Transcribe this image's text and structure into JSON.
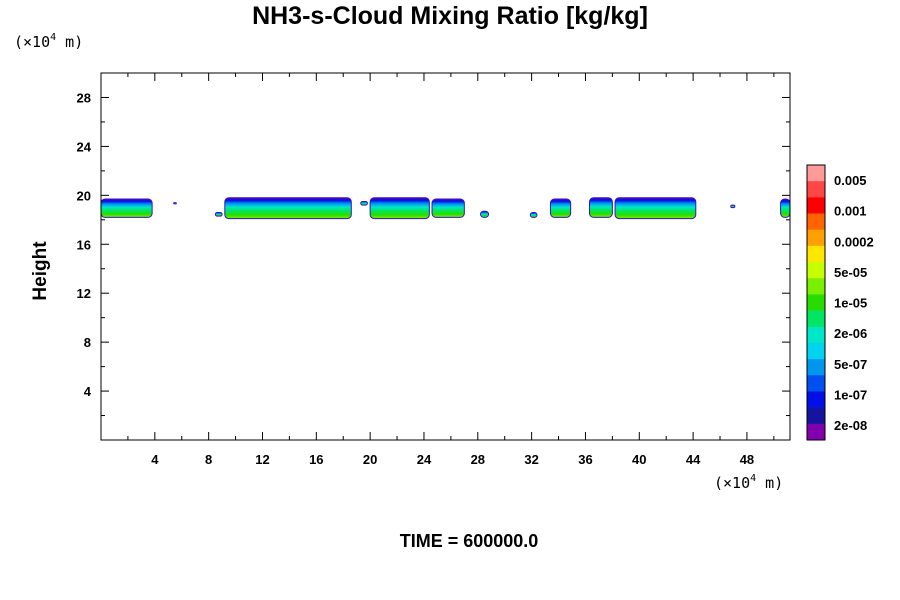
{
  "title": "NH3-s-Cloud Mixing Ratio [kg/kg]",
  "y_unit": {
    "prefix": "(×10",
    "exp": "4",
    "suffix": " m)"
  },
  "x_unit": {
    "prefix": "(×10",
    "exp": "4",
    "suffix": " m)"
  },
  "time_label": "TIME = 600000.0",
  "chart_data": {
    "type": "heatmap",
    "title": "NH3-s-Cloud Mixing Ratio [kg/kg]",
    "xlabel": "",
    "ylabel": "Height",
    "x_unit": "×10^4 m",
    "y_unit": "×10^4 m",
    "xlim": [
      0,
      51.2
    ],
    "ylim": [
      0,
      30
    ],
    "x_ticks": [
      4,
      8,
      12,
      16,
      20,
      24,
      28,
      32,
      36,
      40,
      44,
      48
    ],
    "y_ticks": [
      4,
      8,
      12,
      16,
      20,
      24,
      28
    ],
    "colorbar": {
      "labels": [
        "0.005",
        "0.001",
        "0.0002",
        "5e-05",
        "1e-05",
        "2e-06",
        "5e-07",
        "1e-07",
        "2e-08"
      ],
      "colors": [
        "#ff9a9a",
        "#ff4646",
        "#ff0000",
        "#ff6400",
        "#ffa000",
        "#ffe600",
        "#c8ff00",
        "#78f000",
        "#28dc00",
        "#00e664",
        "#00e6c8",
        "#00d2f0",
        "#0096f0",
        "#0050f0",
        "#0010e6",
        "#1414a0",
        "#8000b0"
      ]
    },
    "cloud_band": {
      "y_bottom": 18.0,
      "y_top": 19.8
    },
    "cells": [
      {
        "x0": 0.0,
        "x1": 3.8,
        "top": 19.7,
        "bottom": 18.2
      },
      {
        "x0": 5.4,
        "x1": 5.6,
        "top": 19.4,
        "bottom": 19.3
      },
      {
        "x0": 8.5,
        "x1": 9.0,
        "top": 18.6,
        "bottom": 18.3
      },
      {
        "x0": 9.2,
        "x1": 18.6,
        "top": 19.8,
        "bottom": 18.1
      },
      {
        "x0": 19.3,
        "x1": 19.8,
        "top": 19.5,
        "bottom": 19.2
      },
      {
        "x0": 20.0,
        "x1": 24.4,
        "top": 19.8,
        "bottom": 18.1
      },
      {
        "x0": 24.6,
        "x1": 27.0,
        "top": 19.7,
        "bottom": 18.2
      },
      {
        "x0": 28.2,
        "x1": 28.8,
        "top": 18.7,
        "bottom": 18.2
      },
      {
        "x0": 31.9,
        "x1": 32.4,
        "top": 18.6,
        "bottom": 18.2
      },
      {
        "x0": 33.4,
        "x1": 34.9,
        "top": 19.7,
        "bottom": 18.2
      },
      {
        "x0": 36.3,
        "x1": 38.0,
        "top": 19.8,
        "bottom": 18.2
      },
      {
        "x0": 38.2,
        "x1": 44.2,
        "top": 19.8,
        "bottom": 18.1
      },
      {
        "x0": 46.8,
        "x1": 47.1,
        "top": 19.2,
        "bottom": 19.0
      },
      {
        "x0": 50.5,
        "x1": 51.2,
        "top": 19.7,
        "bottom": 18.2
      }
    ]
  }
}
